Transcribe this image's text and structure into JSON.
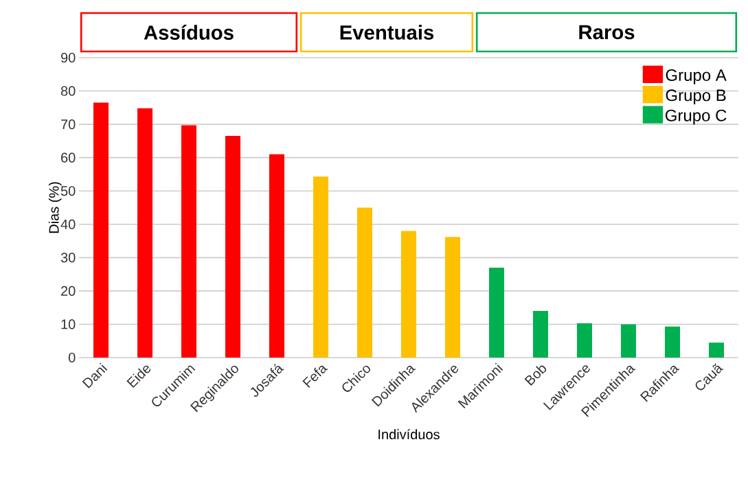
{
  "chart_data": {
    "type": "bar",
    "xlabel": "Indivíduos",
    "ylabel": "Dias (%)",
    "categories": [
      "Dani",
      "Eide",
      "Curumim",
      "Reginaldo",
      "Josafá",
      "Fefa",
      "Chico",
      "Doidinha",
      "Alexandre",
      "Marimoni",
      "Bob",
      "Lawrence",
      "Pimentinha",
      "Rafinha",
      "Cauã"
    ],
    "series": [
      {
        "name": "Grupo A",
        "color": "#ff0000",
        "values": [
          76.5,
          74.8,
          69.7,
          66.5,
          61,
          null,
          null,
          null,
          null,
          null,
          null,
          null,
          null,
          null,
          null
        ]
      },
      {
        "name": "Grupo B",
        "color": "#ffc000",
        "values": [
          null,
          null,
          null,
          null,
          null,
          54.3,
          45,
          38,
          36.2,
          null,
          null,
          null,
          null,
          null,
          null
        ]
      },
      {
        "name": "Grupo C",
        "color": "#00b050",
        "values": [
          null,
          null,
          null,
          null,
          null,
          null,
          null,
          null,
          null,
          27,
          14,
          10.3,
          10,
          9.3,
          4.5
        ]
      }
    ],
    "annotations": [
      "Assíduos",
      "Eventuais",
      "Raros"
    ],
    "ylim": [
      0,
      90
    ],
    "yticks": [
      0,
      10,
      20,
      30,
      40,
      50,
      60,
      70,
      80,
      90
    ],
    "grid": "y",
    "legend": "top right"
  }
}
